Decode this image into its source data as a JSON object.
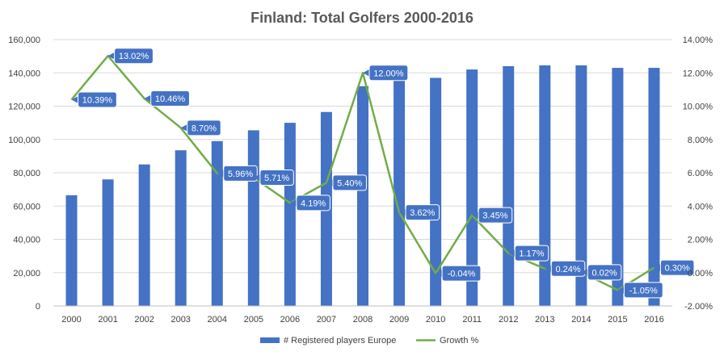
{
  "chart_data": {
    "type": "bar",
    "title": "Finland: Total Golfers 2000-2016",
    "categories": [
      "2000",
      "2001",
      "2002",
      "2003",
      "2004",
      "2005",
      "2006",
      "2007",
      "2008",
      "2009",
      "2010",
      "2011",
      "2012",
      "2013",
      "2014",
      "2015",
      "2016"
    ],
    "series": [
      {
        "name": "# Registered players Europe",
        "type": "bar",
        "axis": "left",
        "color": "#4472C4",
        "values": [
          66500,
          76000,
          85000,
          93500,
          99000,
          105500,
          110000,
          116500,
          132000,
          137000,
          137000,
          142000,
          144000,
          144500,
          144500,
          143000,
          143000
        ]
      },
      {
        "name": "Growth %",
        "type": "line",
        "axis": "right",
        "color": "#70AD47",
        "values": [
          10.39,
          13.02,
          10.46,
          8.7,
          5.96,
          5.71,
          4.19,
          5.4,
          12.0,
          3.62,
          -0.04,
          3.45,
          1.17,
          0.24,
          0.02,
          -1.05,
          0.3
        ],
        "labels": [
          "10.39%",
          "13.02%",
          "10.46%",
          "8.70%",
          "5.96%",
          "5.71%",
          "4.19%",
          "5.40%",
          "12.00%",
          "3.62%",
          "-0.04%",
          "3.45%",
          "1.17%",
          "0.24%",
          "0.02%",
          "-1.05%",
          "0.30%"
        ]
      }
    ],
    "y_left": {
      "min": 0,
      "max": 160000,
      "ticks": [
        "0",
        "20,000",
        "40,000",
        "60,000",
        "80,000",
        "100,000",
        "120,000",
        "140,000",
        "160,000"
      ]
    },
    "y_right": {
      "min": -2,
      "max": 14,
      "ticks": [
        "-2.00%",
        "0.00%",
        "2.00%",
        "4.00%",
        "6.00%",
        "8.00%",
        "10.00%",
        "12.00%",
        "14.00%"
      ]
    },
    "grid": true,
    "legend": "bottom"
  }
}
